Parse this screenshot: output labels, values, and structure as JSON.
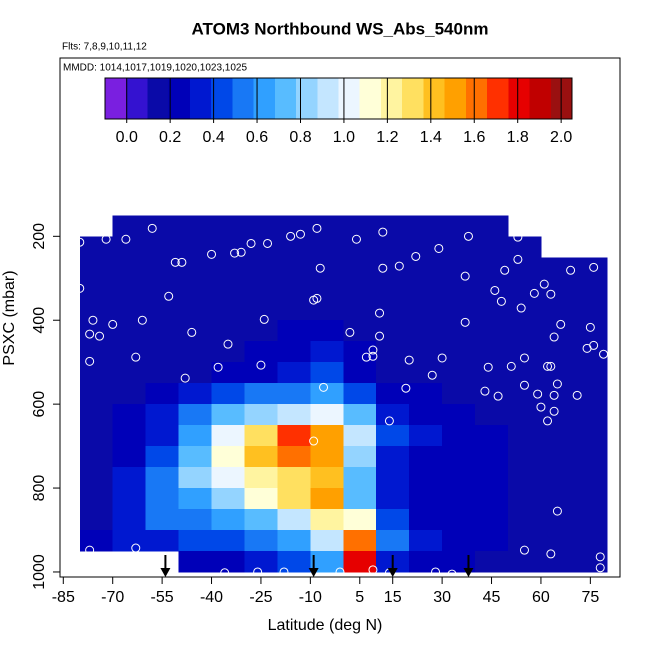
{
  "chart_data": {
    "type": "heatmap",
    "title": "ATOM3 Northbound WS_Abs_540nm",
    "subtitle": "Flts: 7,8,9,10,11,12",
    "annotation": "MMDD: 1014,1017,1019,1020,1023,1025",
    "xlabel": "Latitude (deg N)",
    "ylabel": "PSXC (mbar)",
    "xlim": [
      -86,
      84
    ],
    "ylim": [
      1012,
      -225
    ],
    "xticks": [
      -85,
      -70,
      -55,
      -40,
      -25,
      -10,
      5,
      15,
      30,
      45,
      60,
      75
    ],
    "yticks": [
      200,
      400,
      600,
      800,
      1000
    ],
    "x_edges": [
      -80,
      -70,
      -60,
      -50,
      -40,
      -30,
      -20,
      -10,
      0,
      10,
      20,
      30,
      40,
      50,
      60,
      70,
      80
    ],
    "y_edges": [
      150,
      200,
      250,
      300,
      350,
      400,
      450,
      500,
      550,
      600,
      650,
      700,
      750,
      800,
      850,
      900,
      950,
      1000
    ],
    "z": [
      [
        null,
        0.12,
        0.14,
        0.15,
        0.15,
        0.14,
        0.13,
        0.13,
        0.14,
        0.12,
        0.13,
        0.12,
        0.14,
        null,
        null,
        null
      ],
      [
        0.12,
        0.13,
        0.14,
        0.15,
        0.14,
        0.13,
        0.14,
        0.15,
        0.13,
        0.14,
        0.13,
        0.12,
        0.13,
        0.14,
        null,
        null
      ],
      [
        0.13,
        0.14,
        0.15,
        0.14,
        0.15,
        0.16,
        0.15,
        0.14,
        0.15,
        0.14,
        0.13,
        0.14,
        0.13,
        0.14,
        0.13,
        0.12
      ],
      [
        0.14,
        0.15,
        0.15,
        0.16,
        0.17,
        0.16,
        0.15,
        0.16,
        0.15,
        0.16,
        0.15,
        0.14,
        0.14,
        0.13,
        0.14,
        0.13
      ],
      [
        0.14,
        0.15,
        0.16,
        0.17,
        0.16,
        0.17,
        0.18,
        0.17,
        0.16,
        0.15,
        0.16,
        0.15,
        0.14,
        0.14,
        0.13,
        0.13
      ],
      [
        0.15,
        0.16,
        0.16,
        0.17,
        0.18,
        0.18,
        0.2,
        0.22,
        0.18,
        0.16,
        0.15,
        0.15,
        0.15,
        0.14,
        0.14,
        0.13
      ],
      [
        0.14,
        0.15,
        0.16,
        0.17,
        0.18,
        0.2,
        0.24,
        0.3,
        0.2,
        0.17,
        0.16,
        0.15,
        0.15,
        0.14,
        0.14,
        0.13
      ],
      [
        0.14,
        0.15,
        0.16,
        0.18,
        0.2,
        0.22,
        0.3,
        0.4,
        0.25,
        0.18,
        0.16,
        0.15,
        0.15,
        0.14,
        0.14,
        0.13
      ],
      [
        0.14,
        0.15,
        0.2,
        0.35,
        0.45,
        0.5,
        0.55,
        0.6,
        0.4,
        0.25,
        0.2,
        0.18,
        0.17,
        0.16,
        0.15,
        0.14
      ],
      [
        0.15,
        0.2,
        0.3,
        0.55,
        0.7,
        0.8,
        0.9,
        1.0,
        0.7,
        0.35,
        0.25,
        0.2,
        0.18,
        0.17,
        0.16,
        0.15
      ],
      [
        0.16,
        0.22,
        0.35,
        0.6,
        1.0,
        1.3,
        1.7,
        1.5,
        0.9,
        0.4,
        0.3,
        0.22,
        0.2,
        0.18,
        0.17,
        0.15
      ],
      [
        0.16,
        0.22,
        0.4,
        0.7,
        1.1,
        1.4,
        1.6,
        1.5,
        0.8,
        0.35,
        0.28,
        0.22,
        0.2,
        0.18,
        0.17,
        0.15
      ],
      [
        0.16,
        0.3,
        0.5,
        0.8,
        1.0,
        1.2,
        1.3,
        1.4,
        0.7,
        0.3,
        0.25,
        0.2,
        0.2,
        0.18,
        0.17,
        0.15
      ],
      [
        0.18,
        0.3,
        0.5,
        0.6,
        0.8,
        1.1,
        1.3,
        1.5,
        0.7,
        0.3,
        0.25,
        0.22,
        0.2,
        0.18,
        0.17,
        0.15
      ],
      [
        0.18,
        0.35,
        0.5,
        0.55,
        0.6,
        0.7,
        0.9,
        1.2,
        1.1,
        0.4,
        0.28,
        0.22,
        0.2,
        0.18,
        0.17,
        0.15
      ],
      [
        0.2,
        0.3,
        0.35,
        0.4,
        0.45,
        0.5,
        0.6,
        0.9,
        1.6,
        0.5,
        0.3,
        0.22,
        0.2,
        0.18,
        0.17,
        0.15
      ],
      [
        null,
        null,
        null,
        0.2,
        0.25,
        0.3,
        0.4,
        0.6,
        1.8,
        0.3,
        0.22,
        0.2,
        0.18,
        0.17,
        0.16,
        0.15
      ]
    ],
    "colorbar": {
      "lim": [
        -0.1,
        2.05
      ],
      "ticks": [
        {
          "value": 0,
          "label": "0.0"
        },
        {
          "value": 0.2,
          "label": "0.2"
        },
        {
          "value": 0.4,
          "label": "0.4"
        },
        {
          "value": 0.6,
          "label": "0.6"
        },
        {
          "value": 0.8,
          "label": "0.8"
        },
        {
          "value": 1,
          "label": "1.0"
        },
        {
          "value": 1.2,
          "label": "1.2"
        },
        {
          "value": 1.4,
          "label": "1.4"
        },
        {
          "value": 1.6,
          "label": "1.6"
        },
        {
          "value": 1.8,
          "label": "1.8"
        },
        {
          "value": 2,
          "label": "2.0"
        }
      ],
      "colors": [
        "#7a1fe0",
        "#3412d0",
        "#0a0aa8",
        "#0000b8",
        "#0018d0",
        "#0048e8",
        "#1878f5",
        "#30a0ff",
        "#58bcff",
        "#94d4ff",
        "#c4e6ff",
        "#ecf6ff",
        "#ffffd8",
        "#fff4a0",
        "#ffe060",
        "#ffc020",
        "#ffa000",
        "#ff7000",
        "#ff3000",
        "#e60000",
        "#c00000",
        "#9a1010"
      ]
    },
    "points": {
      "lat": [
        -58,
        -80,
        -72,
        -66,
        -28,
        -23,
        -16,
        -13,
        -8,
        4,
        12,
        29,
        38,
        53,
        -51,
        -49,
        -40,
        -33,
        -31,
        -7,
        12,
        17,
        22,
        37,
        49,
        53,
        69,
        61,
        76,
        -80,
        46,
        -53,
        -8,
        -9,
        48,
        58,
        63,
        -76,
        -70,
        -61,
        -46,
        -24,
        11,
        37,
        54,
        66,
        75,
        -77,
        -74,
        -35,
        2,
        11,
        64,
        76,
        -77,
        -63,
        9,
        9,
        7,
        20,
        30,
        55,
        63,
        79,
        74,
        -48,
        -38,
        -25,
        27,
        44,
        51,
        62,
        -6,
        19,
        43,
        55,
        59,
        47,
        65,
        64,
        71,
        60,
        64,
        62,
        14,
        -9,
        65,
        55,
        63,
        78,
        -77,
        -63,
        78,
        -36,
        -26,
        -18,
        -1,
        9,
        14,
        28,
        33
      ],
      "pressure": [
        181,
        214,
        207,
        207,
        217,
        217,
        200,
        195,
        181,
        207,
        190,
        229,
        200,
        202,
        262,
        262,
        243,
        240,
        238,
        276,
        276,
        271,
        248,
        295,
        281,
        255,
        281,
        314,
        274,
        324,
        329,
        343,
        348,
        352,
        355,
        336,
        338,
        400,
        410,
        400,
        429,
        398,
        383,
        405,
        371,
        410,
        417,
        433,
        438,
        457,
        429,
        438,
        440,
        460,
        498,
        488,
        471,
        486,
        488,
        495,
        490,
        490,
        510,
        481,
        467,
        538,
        512,
        507,
        531,
        512,
        510,
        510,
        560,
        562,
        569,
        555,
        576,
        581,
        552,
        579,
        579,
        607,
        617,
        640,
        640,
        688,
        855,
        948,
        957,
        964,
        948,
        943,
        990,
        1002,
        1000,
        1000,
        1000,
        995,
        1002,
        1000,
        1005
      ]
    },
    "arrows": [
      -54,
      -9,
      15,
      38
    ]
  }
}
